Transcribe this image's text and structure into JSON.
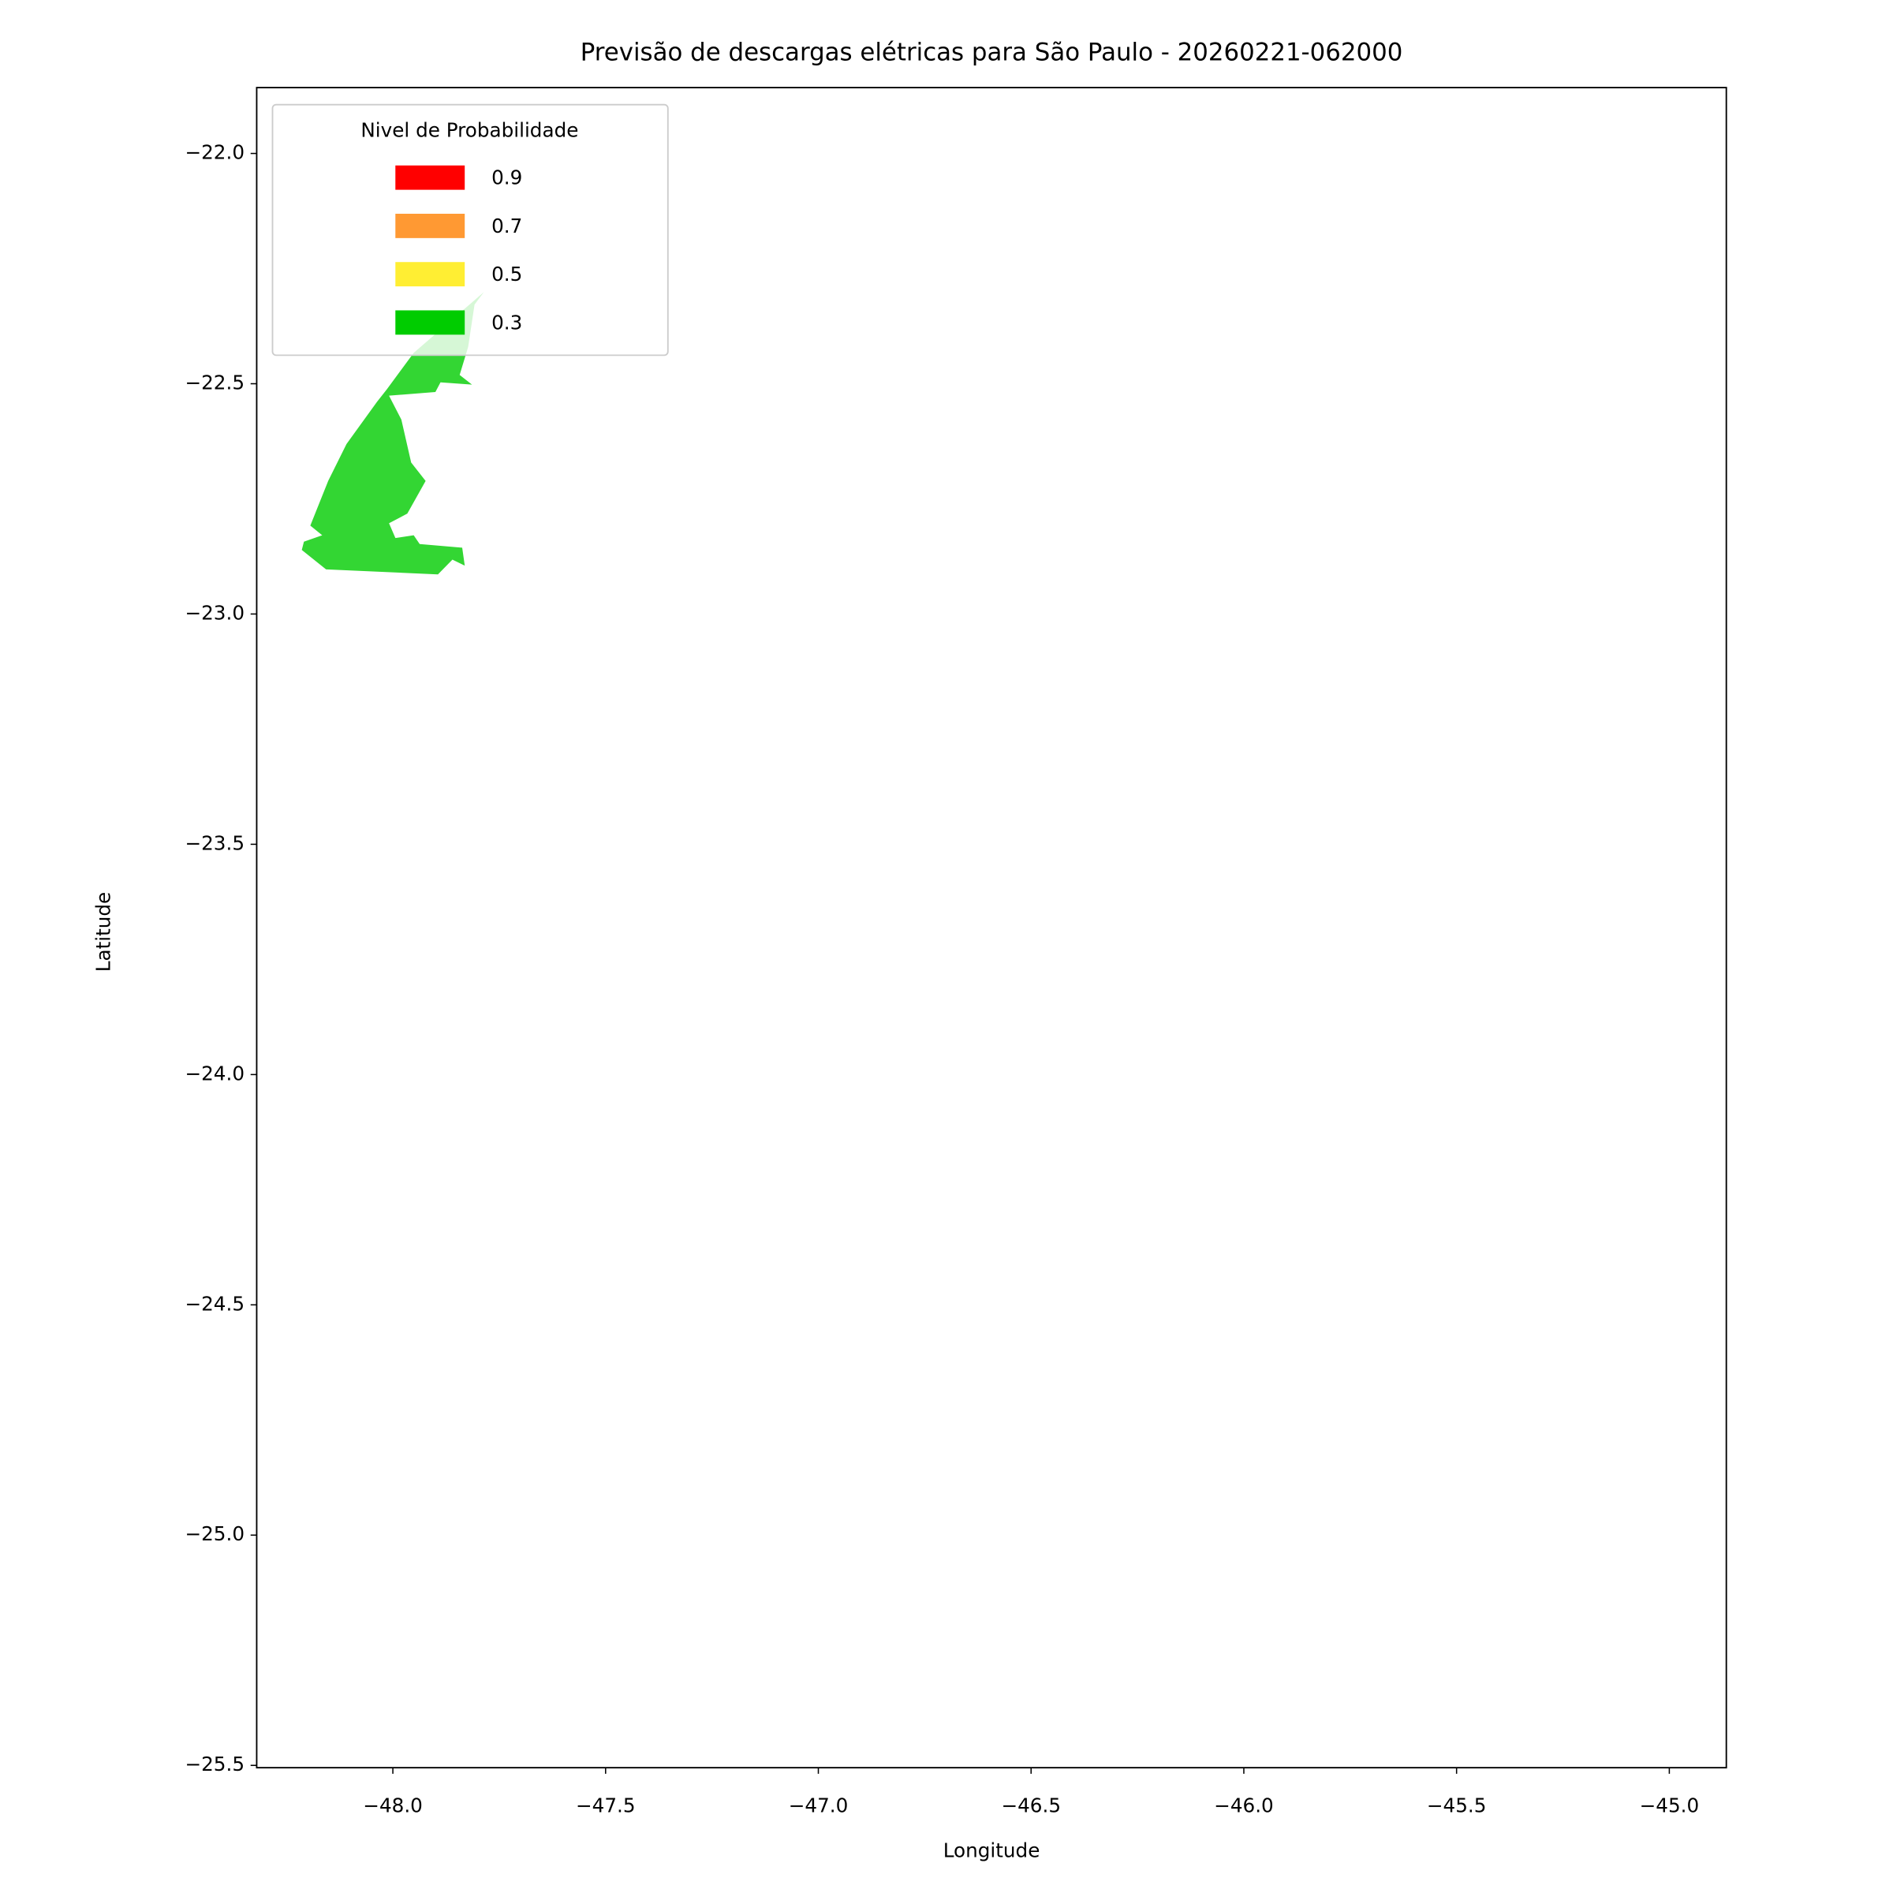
{
  "chart_data": {
    "type": "map",
    "title": "Previsão de descargas elétricas para São Paulo - 20260221-062000",
    "xlabel": "Longitude",
    "ylabel": "Latitude",
    "xlim": [
      -48.32,
      -44.866
    ],
    "ylim": [
      -25.505,
      -21.857
    ],
    "xticks": [
      {
        "value": -48.0,
        "label": "−48.0"
      },
      {
        "value": -47.5,
        "label": "−47.5"
      },
      {
        "value": -47.0,
        "label": "−47.0"
      },
      {
        "value": -46.5,
        "label": "−46.5"
      },
      {
        "value": -46.0,
        "label": "−46.0"
      },
      {
        "value": -45.5,
        "label": "−45.5"
      },
      {
        "value": -45.0,
        "label": "−45.0"
      }
    ],
    "yticks": [
      {
        "value": -22.0,
        "label": "−22.0"
      },
      {
        "value": -22.5,
        "label": "−22.5"
      },
      {
        "value": -23.0,
        "label": "−23.0"
      },
      {
        "value": -23.5,
        "label": "−23.5"
      },
      {
        "value": -24.0,
        "label": "−24.0"
      },
      {
        "value": -24.5,
        "label": "−24.5"
      },
      {
        "value": -25.0,
        "label": "−25.0"
      },
      {
        "value": -25.5,
        "label": "−25.5"
      }
    ],
    "legend_title": "Nivel de Probabilidade",
    "legend": "upper left",
    "series": [
      {
        "name": 0.9,
        "color": "#ff0000",
        "polygons": []
      },
      {
        "name": 0.7,
        "color": "#ff9933",
        "polygons": []
      },
      {
        "name": 0.5,
        "color": "#ffee33",
        "polygons": []
      },
      {
        "name": 0.3,
        "color": "#00cc00",
        "polygons": [
          {
            "lon": [
              -47.786,
              -47.951,
              -48.014,
              -48.037,
              -48.109,
              -48.152,
              -48.194,
              -48.166,
              -48.209,
              -48.214,
              -48.157,
              -47.894,
              -47.86,
              -47.831,
              -47.837,
              -47.937,
              -47.951,
              -47.994,
              -48.009,
              -47.966,
              -47.923,
              -47.957,
              -47.98,
              -48.009,
              -47.9,
              -47.888,
              -47.814,
              -47.843,
              -47.823,
              -47.808
            ],
            "lat": [
              -22.301,
              -22.433,
              -22.512,
              -22.539,
              -22.631,
              -22.711,
              -22.808,
              -22.829,
              -22.843,
              -22.861,
              -22.903,
              -22.914,
              -22.882,
              -22.895,
              -22.856,
              -22.848,
              -22.829,
              -22.835,
              -22.803,
              -22.782,
              -22.711,
              -22.671,
              -22.578,
              -22.526,
              -22.518,
              -22.497,
              -22.502,
              -22.481,
              -22.42,
              -22.328
            ]
          }
        ]
      }
    ]
  }
}
